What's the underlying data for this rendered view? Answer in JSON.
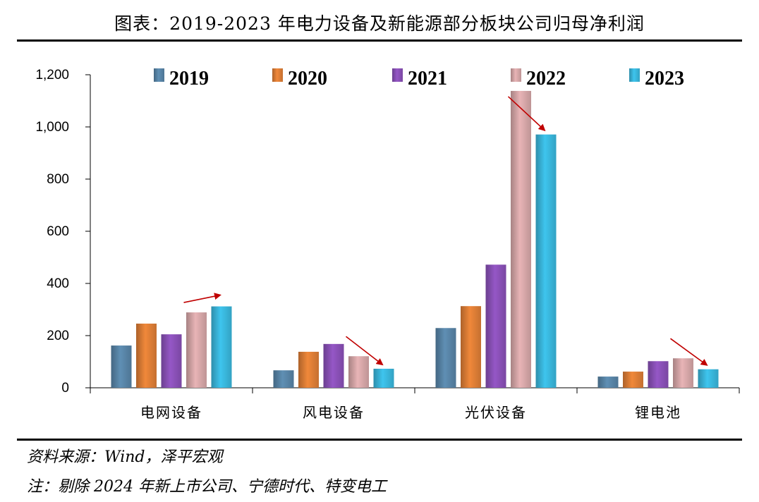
{
  "header": {
    "title": "图表：2019-2023 年电力设备及新能源部分板块公司归母净利润"
  },
  "footer": {
    "source": "资料来源：Wind，泽平宏观",
    "note": "注：剔除 2024 年新上市公司、宁德时代、特变电工"
  },
  "chart_data": {
    "type": "bar",
    "title": "",
    "xlabel": "",
    "ylabel": "",
    "ylim": [
      0,
      1200
    ],
    "yticks": [
      "0",
      "200",
      "400",
      "600",
      "800",
      "1,000",
      "1,200"
    ],
    "grid": false,
    "legend_position": "top",
    "categories": [
      "电网设备",
      "风电设备",
      "光伏设备",
      "锂电池"
    ],
    "series": [
      {
        "name": "2019",
        "color": "#5f8fb4",
        "values": [
          162,
          67,
          229,
          43
        ]
      },
      {
        "name": "2020",
        "color": "#f0883a",
        "values": [
          246,
          138,
          313,
          62
        ]
      },
      {
        "name": "2021",
        "color": "#9557c6",
        "values": [
          205,
          168,
          472,
          102
        ]
      },
      {
        "name": "2022",
        "color": "#e8b4b6",
        "values": [
          289,
          121,
          1138,
          113
        ]
      },
      {
        "name": "2023",
        "color": "#3ec5ee",
        "values": [
          312,
          73,
          971,
          71
        ]
      }
    ],
    "arrows": [
      {
        "category": "电网设备",
        "from_series": "2022",
        "to_series": "2023",
        "direction": "up"
      },
      {
        "category": "风电设备",
        "from_series": "2022",
        "to_series": "2023",
        "direction": "down"
      },
      {
        "category": "光伏设备",
        "from_series": "2022",
        "to_series": "2023",
        "direction": "down"
      },
      {
        "category": "锂电池",
        "from_series": "2022",
        "to_series": "2023",
        "direction": "down"
      }
    ],
    "arrow_color": "#c00000"
  }
}
